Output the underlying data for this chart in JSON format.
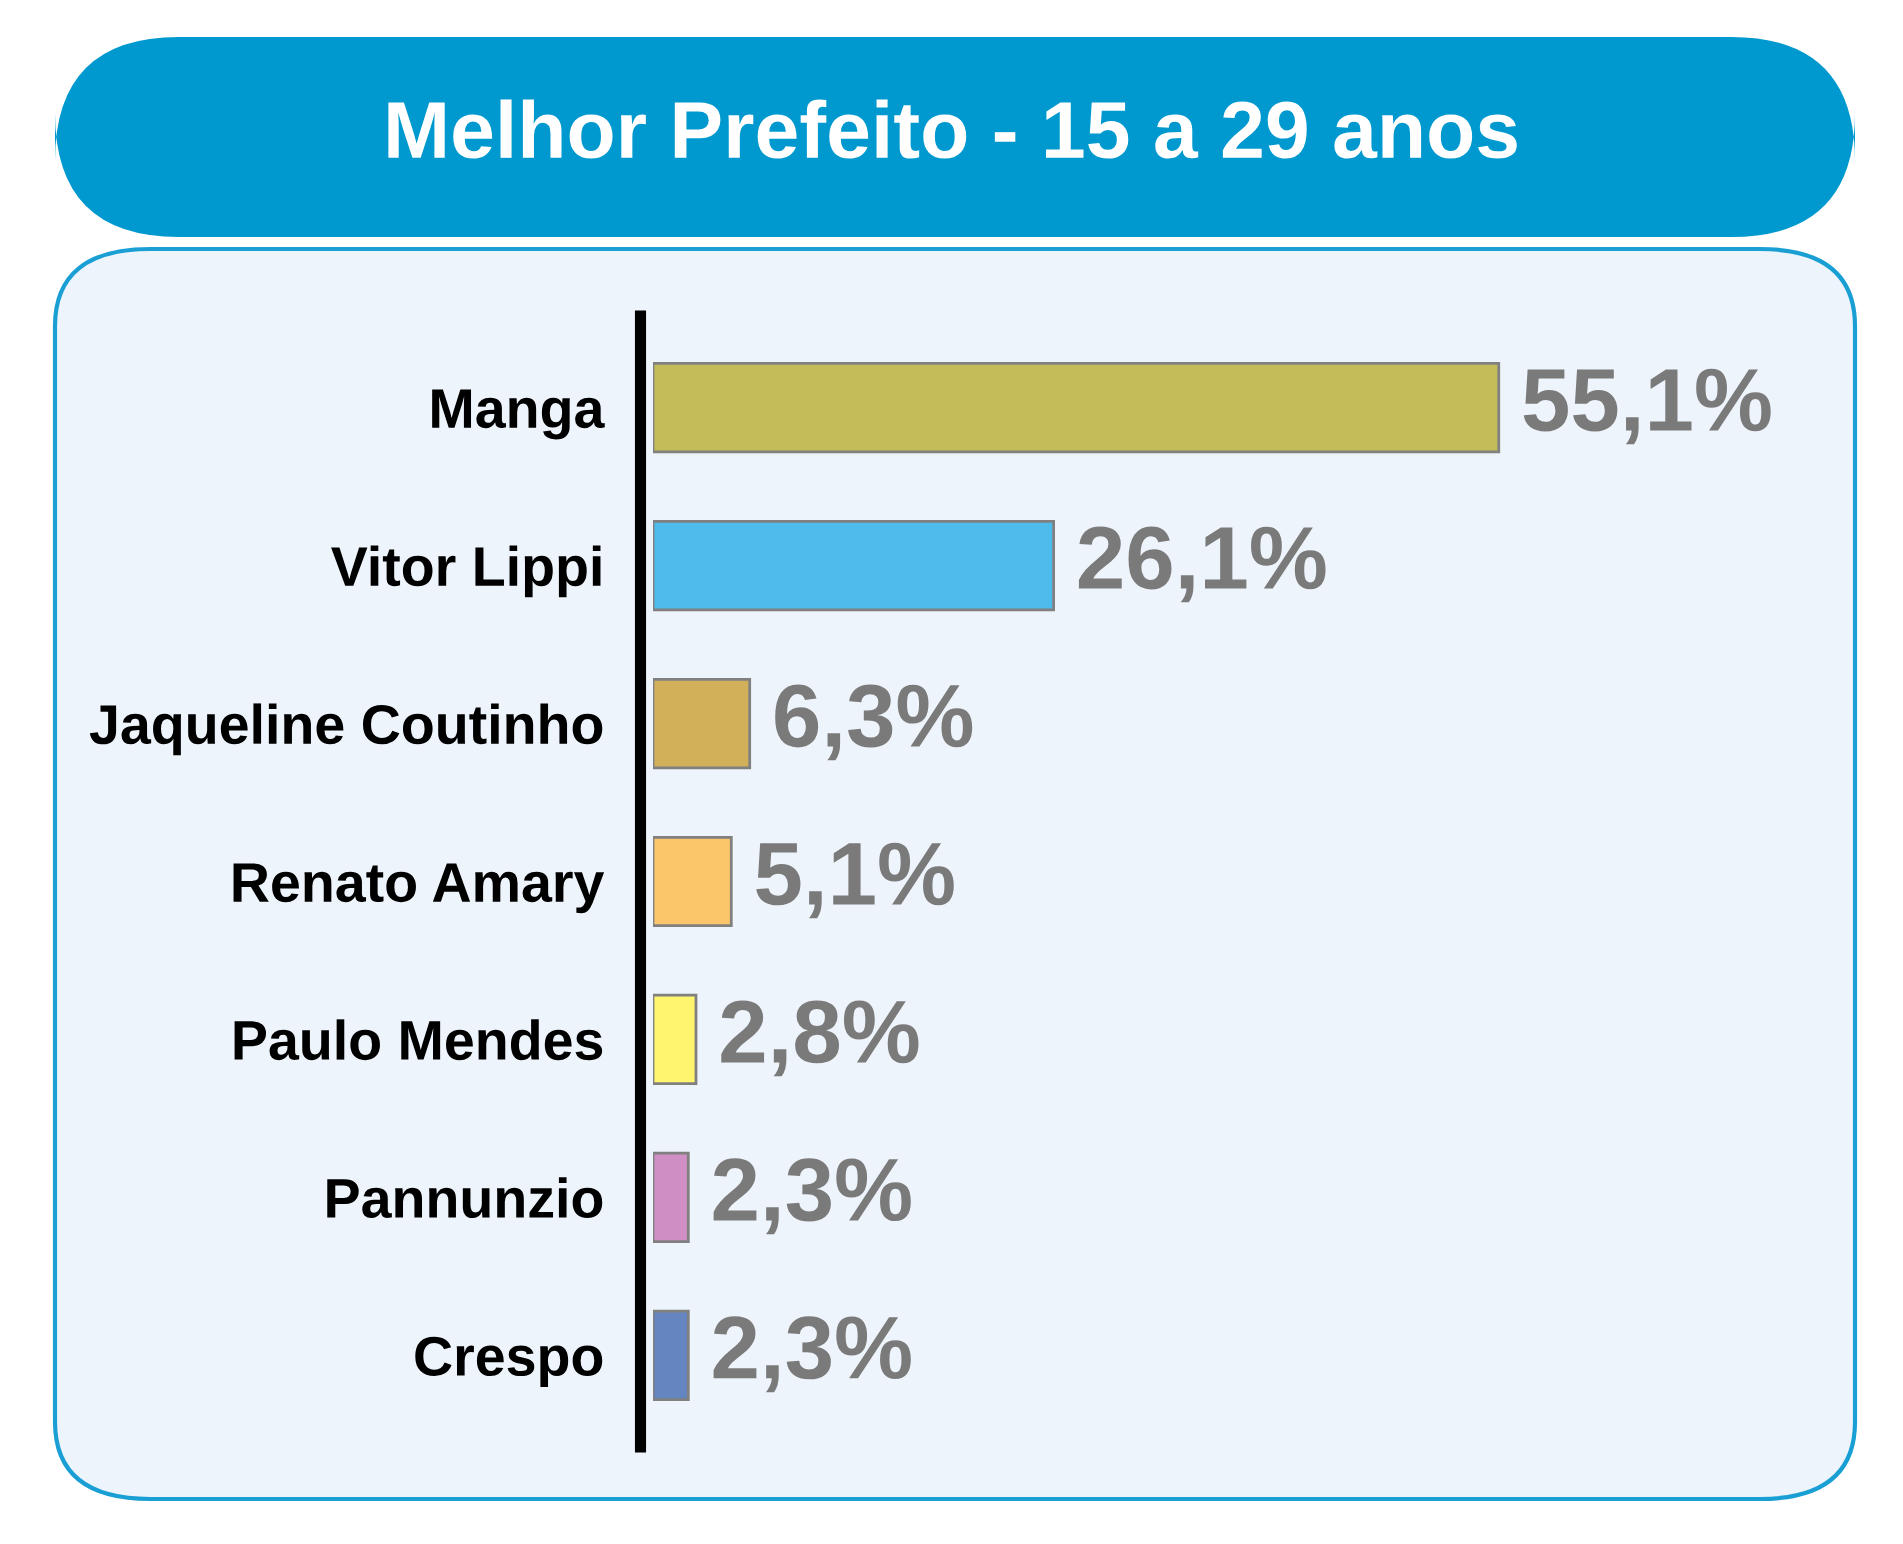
{
  "chart_data": {
    "type": "bar",
    "orientation": "horizontal",
    "title": "Melhor Prefeito - 15 a 29 anos",
    "categories": [
      "Manga",
      "Vitor Lippi",
      "Jaqueline Coutinho",
      "Renato Amary",
      "Paulo Mendes",
      "Pannunzio",
      "Crespo"
    ],
    "values": [
      55.1,
      26.1,
      6.3,
      5.1,
      2.8,
      2.3,
      2.3
    ],
    "colors": [
      "#c4bc58",
      "#4dbcec",
      "#d2b05a",
      "#fbc56a",
      "#fff56e",
      "#cf8fc4",
      "#6485c0"
    ],
    "value_labels": [
      "55,1%",
      "26,1%",
      "6,3%",
      "5,1%",
      "2,8%",
      "2,3%",
      "2,3%"
    ],
    "tick_labels": "y"
  }
}
